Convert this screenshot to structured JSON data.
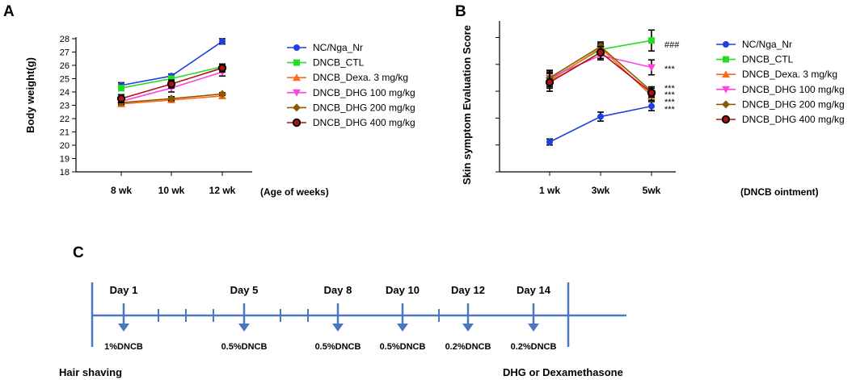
{
  "panel_labels": {
    "a": "A",
    "b": "B",
    "c": "C"
  },
  "colors": {
    "nc": "#1f3fe0",
    "ctl": "#22dd22",
    "dexa": "#ff6a1a",
    "dhg100": "#ff44dd",
    "dhg200": "#8b5a00",
    "dhg400": "#b01010",
    "timeline": "#4a78c0"
  },
  "chart_data": [
    {
      "id": "A",
      "type": "line",
      "title": "",
      "xlabel": "(Age of weeks)",
      "ylabel": "Body weight(g)",
      "categories": [
        "8 wk",
        "10 wk",
        "12 wk"
      ],
      "ylim": [
        18,
        28
      ],
      "yticks": [
        "18",
        "19",
        "20",
        "21",
        "22",
        "23",
        "24",
        "25",
        "26",
        "27",
        "28"
      ],
      "legend_position": "right",
      "series": [
        {
          "name": "NC/Nga_Nr",
          "key": "nc",
          "marker": "circle",
          "values": [
            24.5,
            25.2,
            27.8
          ],
          "err": [
            0.2,
            0.15,
            0.2
          ]
        },
        {
          "name": "DNCB_CTL",
          "key": "ctl",
          "marker": "square",
          "values": [
            24.3,
            25.0,
            25.9
          ],
          "err": [
            0.2,
            0.15,
            0.2
          ]
        },
        {
          "name": "DNCB_Dexa. 3 mg/kg",
          "key": "dexa",
          "marker": "triangle",
          "values": [
            23.1,
            23.4,
            23.7
          ],
          "err": [
            0.15,
            0.15,
            0.15
          ]
        },
        {
          "name": "DNCB_DHG 100 mg/kg",
          "key": "dhg100",
          "marker": "triangle-down",
          "values": [
            23.3,
            24.3,
            25.5
          ],
          "err": [
            0.2,
            0.3,
            0.3
          ]
        },
        {
          "name": "DNCB_DHG 200 mg/kg",
          "key": "dhg200",
          "marker": "diamond",
          "values": [
            23.2,
            23.5,
            23.85
          ],
          "err": [
            0.15,
            0.15,
            0.1
          ]
        },
        {
          "name": "DNCB_DHG 400 mg/kg",
          "key": "dhg400",
          "marker": "circle-open",
          "values": [
            23.5,
            24.6,
            25.8
          ],
          "err": [
            0.3,
            0.3,
            0.3
          ]
        }
      ]
    },
    {
      "id": "B",
      "type": "line",
      "title": "",
      "xlabel": "(DNCB ointment)",
      "ylabel": "Skin symptom Evaluation Score",
      "categories": [
        "1 wk",
        "3wk",
        "5wk"
      ],
      "ylim": [
        0,
        10
      ],
      "legend_position": "right",
      "series": [
        {
          "name": "NC/Nga_Nr",
          "key": "nc",
          "marker": "circle",
          "values": [
            2.0,
            3.7,
            4.4
          ],
          "err": [
            0.2,
            0.3,
            0.3
          ]
        },
        {
          "name": "DNCB_CTL",
          "key": "ctl",
          "marker": "square",
          "values": [
            6.2,
            8.2,
            8.8
          ],
          "err": [
            0.5,
            0.3,
            0.7
          ]
        },
        {
          "name": "DNCB_Dexa. 3 mg/kg",
          "key": "dexa",
          "marker": "triangle",
          "values": [
            6.1,
            8.3,
            5.1
          ],
          "err": [
            0.5,
            0.3,
            0.3
          ]
        },
        {
          "name": "DNCB_DHG 100 mg/kg",
          "key": "dhg100",
          "marker": "triangle-down",
          "values": [
            6.3,
            7.8,
            7.0
          ],
          "err": [
            0.5,
            0.3,
            0.5
          ]
        },
        {
          "name": "DNCB_DHG 200 mg/kg",
          "key": "dhg200",
          "marker": "diamond",
          "values": [
            6.3,
            8.4,
            5.4
          ],
          "err": [
            0.5,
            0.3,
            0.3
          ]
        },
        {
          "name": "DNCB_DHG 400 mg/kg",
          "key": "dhg400",
          "marker": "circle-open",
          "values": [
            6.0,
            8.0,
            5.3
          ],
          "err": [
            0.6,
            0.4,
            0.3
          ]
        }
      ],
      "annotations": [
        "###",
        "***",
        "***",
        "***",
        "***",
        "***"
      ]
    }
  ],
  "timeline": {
    "days": [
      {
        "day": "Day 1",
        "dose": "1%DNCB"
      },
      {
        "day": "Day 5",
        "dose": "0.5%DNCB"
      },
      {
        "day": "Day 8",
        "dose": "0.5%DNCB"
      },
      {
        "day": "Day 10",
        "dose": "0.5%DNCB"
      },
      {
        "day": "Day 12",
        "dose": "0.2%DNCB"
      },
      {
        "day": "Day 14",
        "dose": "0.2%DNCB"
      }
    ],
    "start_label": "Hair shaving",
    "end_label": "DHG or Dexamethasone"
  }
}
